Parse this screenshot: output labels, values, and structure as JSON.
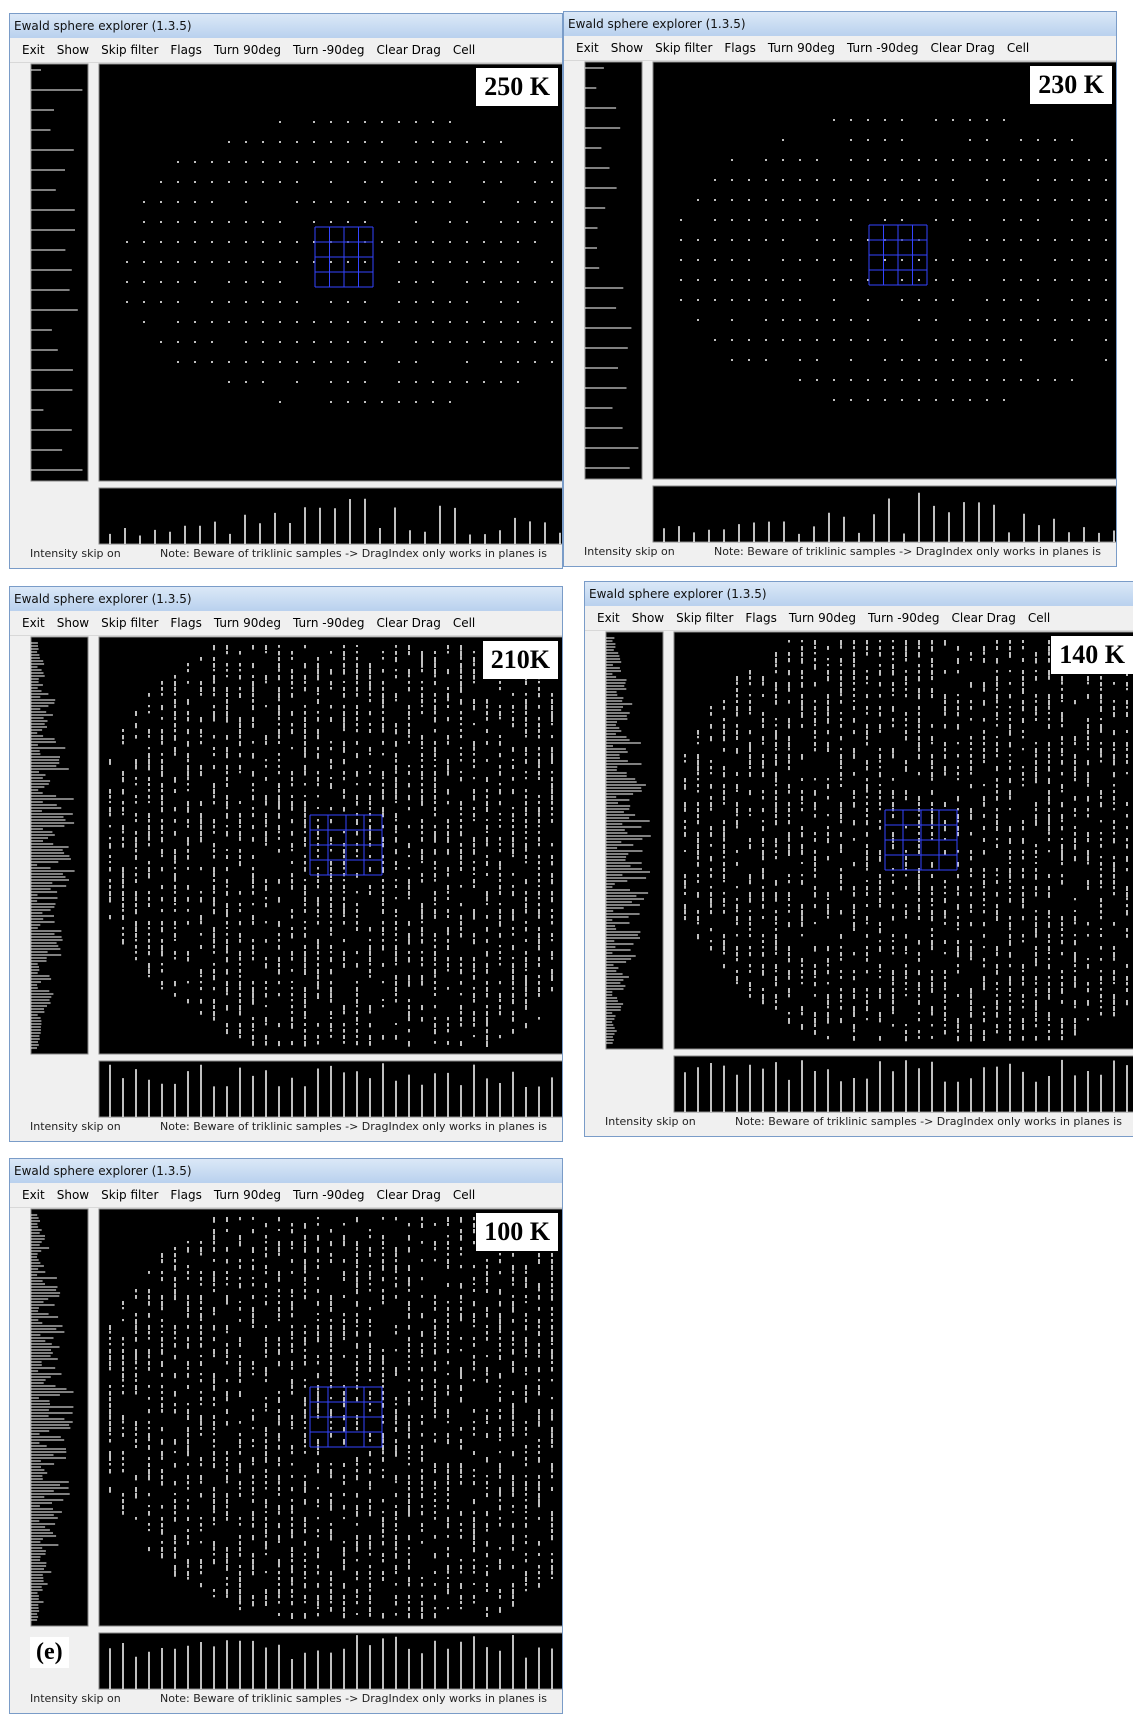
{
  "windows": [
    {
      "title": "Ewald sphere explorer (1.3.5)",
      "menu": [
        "Exit",
        "Show",
        "Skip filter",
        "Flags",
        "Turn 90deg",
        "Turn -90deg",
        "Clear Drag",
        "Cell"
      ],
      "temperature": "250 K",
      "status": "Intensity skip on",
      "note": "Note: Beware of triklinic samples -> DragIndex only works in planes is"
    },
    {
      "title": "Ewald sphere explorer (1.3.5)",
      "menu": [
        "Exit",
        "Show",
        "Skip filter",
        "Flags",
        "Turn 90deg",
        "Turn -90deg",
        "Clear Drag",
        "Cell"
      ],
      "temperature": "230 K",
      "status": "Intensity skip on",
      "note": "Note: Beware of triklinic samples -> DragIndex only works in planes is"
    },
    {
      "title": "Ewald sphere explorer (1.3.5)",
      "menu": [
        "Exit",
        "Show",
        "Skip filter",
        "Flags",
        "Turn 90deg",
        "Turn -90deg",
        "Clear Drag",
        "Cell"
      ],
      "temperature": "210K",
      "status": "Intensity skip on",
      "note": "Note: Beware of triklinic samples -> DragIndex only works in planes is"
    },
    {
      "title": "Ewald sphere explorer (1.3.5)",
      "menu": [
        "Exit",
        "Show",
        "Skip filter",
        "Flags",
        "Turn 90deg",
        "Turn -90deg",
        "Clear Drag",
        "Cell"
      ],
      "temperature": "140 K",
      "status": "Intensity skip on",
      "note": "Note: Beware of triklinic samples -> DragIndex only works in planes is"
    },
    {
      "title": "Ewald sphere explorer (1.3.5)",
      "menu": [
        "Exit",
        "Show",
        "Skip filter",
        "Flags",
        "Turn 90deg",
        "Turn -90deg",
        "Clear Drag",
        "Cell"
      ],
      "temperature": "100 K",
      "status": "Intensity skip on",
      "note": "Note: Beware of triklinic samples -> DragIndex only works in planes is",
      "panel_label": "(e)"
    }
  ]
}
